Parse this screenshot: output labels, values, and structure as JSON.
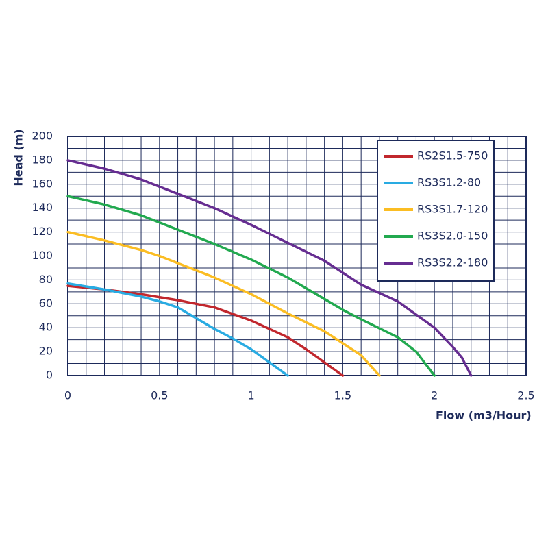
{
  "chart_data": {
    "type": "line",
    "x_label": "Flow (m3/Hour)",
    "y_label": "Head (m)",
    "xlim": [
      0,
      2.5
    ],
    "xticks": [
      0,
      0.5,
      1,
      1.5,
      2,
      2.5
    ],
    "ylim": [
      0,
      200
    ],
    "yticks": [
      0,
      20,
      40,
      60,
      80,
      100,
      120,
      140,
      160,
      180,
      200
    ],
    "grid": true,
    "legend": "upper right",
    "series": [
      {
        "name": "RS2S1.5-750",
        "color": "#c1272d",
        "x": [
          0,
          0.2,
          0.4,
          0.6,
          0.8,
          1.0,
          1.2,
          1.3,
          1.4,
          1.5
        ],
        "values": [
          75,
          72,
          68,
          63,
          57,
          46,
          32,
          22,
          11,
          0
        ]
      },
      {
        "name": "RS3S1.2-80",
        "color": "#29abe2",
        "x": [
          0,
          0.2,
          0.4,
          0.5,
          0.6,
          0.7,
          0.8,
          0.9,
          1.0,
          1.1,
          1.2
        ],
        "values": [
          77,
          72,
          66,
          62,
          57,
          48,
          39,
          31,
          22,
          11,
          0
        ]
      },
      {
        "name": "RS3S1.7-120",
        "color": "#fbbd23",
        "x": [
          0,
          0.2,
          0.4,
          0.5,
          0.6,
          0.8,
          1.0,
          1.2,
          1.4,
          1.5,
          1.6,
          1.7
        ],
        "values": [
          120,
          113,
          105,
          100,
          94,
          82,
          68,
          52,
          37,
          27,
          17,
          0
        ]
      },
      {
        "name": "RS3S2.0-150",
        "color": "#22a94f",
        "x": [
          0,
          0.2,
          0.4,
          0.6,
          0.8,
          1.0,
          1.2,
          1.4,
          1.5,
          1.6,
          1.8,
          1.9,
          2.0
        ],
        "values": [
          150,
          143,
          134,
          122,
          110,
          97,
          82,
          64,
          55,
          47,
          32,
          20,
          0
        ]
      },
      {
        "name": "RS3S2.2-180",
        "color": "#662d91",
        "x": [
          0,
          0.2,
          0.4,
          0.6,
          0.8,
          1.0,
          1.2,
          1.4,
          1.5,
          1.6,
          1.8,
          2.0,
          2.1,
          2.15,
          2.2
        ],
        "values": [
          180,
          173,
          164,
          152,
          140,
          126,
          111,
          96,
          86,
          76,
          62,
          40,
          24,
          15,
          0
        ]
      }
    ]
  }
}
